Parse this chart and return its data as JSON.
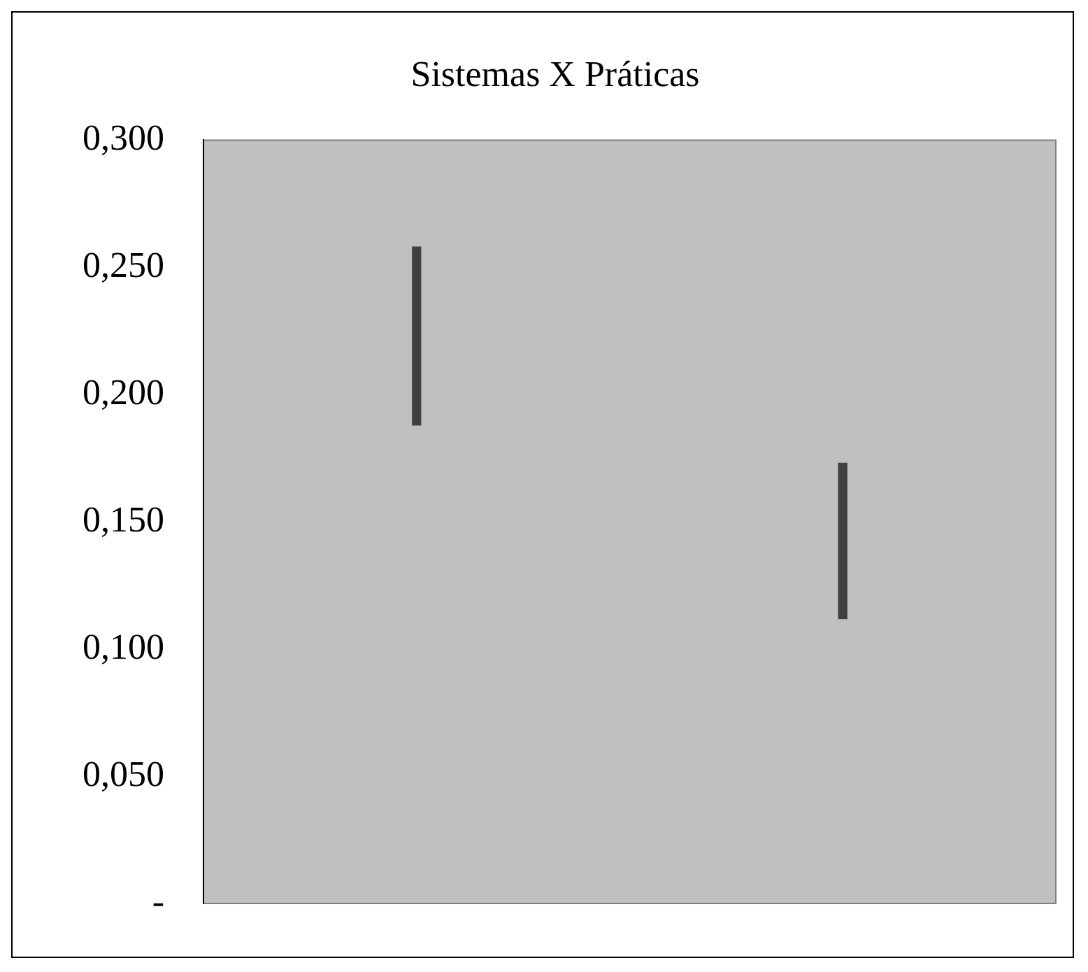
{
  "chart_data": {
    "type": "bar",
    "title": "Sistemas X Práticas",
    "categories": [
      null,
      null
    ],
    "base": [
      0.188,
      0.112
    ],
    "values": [
      0.07,
      0.061
    ],
    "color": "#404040",
    "ylim": [
      0,
      0.3
    ],
    "yticks": [
      {
        "value": 0,
        "label": "-"
      },
      {
        "value": 0.05,
        "label": "0,050"
      },
      {
        "value": 0.1,
        "label": "0,100"
      },
      {
        "value": 0.15,
        "label": "0,150"
      },
      {
        "value": 0.2,
        "label": "0,200"
      },
      {
        "value": 0.25,
        "label": "0,250"
      },
      {
        "value": 0.3,
        "label": "0,300"
      }
    ],
    "grid": false
  }
}
